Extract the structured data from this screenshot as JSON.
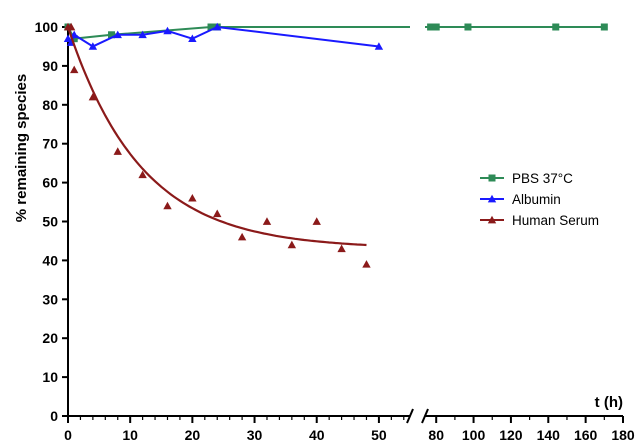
{
  "chart_data": {
    "type": "line",
    "ylabel": "% remaining species",
    "xlabel": "t (h)",
    "ylim": [
      0,
      100
    ],
    "y_ticks": [
      0,
      10,
      20,
      30,
      40,
      50,
      60,
      70,
      80,
      90,
      100
    ],
    "x_axis_break": true,
    "x_segment1": {
      "range": [
        0,
        55
      ],
      "ticks": [
        0,
        10,
        20,
        30,
        40,
        50
      ]
    },
    "x_segment2": {
      "range": [
        74,
        180
      ],
      "ticks": [
        80,
        100,
        120,
        140,
        160,
        180
      ]
    },
    "legend_position": "right",
    "series": [
      {
        "name": "PBS 37°C",
        "color": "#2e8b57",
        "marker": "square",
        "x": [
          0,
          1,
          7,
          23,
          24,
          77,
          80,
          97,
          144,
          170
        ],
        "y": [
          100,
          97,
          98,
          100,
          100,
          100,
          100,
          100,
          100,
          100
        ]
      },
      {
        "name": "Albumin",
        "color": "#1a1aff",
        "marker": "triangle",
        "x": [
          0,
          0.5,
          1,
          4,
          8,
          12,
          16,
          20,
          24,
          50
        ],
        "y": [
          97,
          96,
          98,
          95,
          98,
          98,
          99,
          97,
          100,
          95
        ]
      },
      {
        "name": "Human Serum",
        "color": "#8b1a1a",
        "marker": "triangle",
        "points_x": [
          0,
          0.5,
          1,
          4,
          8,
          12,
          16,
          20,
          24,
          28,
          32,
          36,
          40,
          44,
          48
        ],
        "points_y": [
          100,
          100,
          89,
          82,
          68,
          62,
          54,
          56,
          52,
          46,
          50,
          44,
          50,
          43,
          39
        ],
        "fit": {
          "model": "one-phase exponential decay",
          "y0": 100,
          "plateau": 43,
          "k": 0.085,
          "x_end": 48
        }
      }
    ]
  }
}
